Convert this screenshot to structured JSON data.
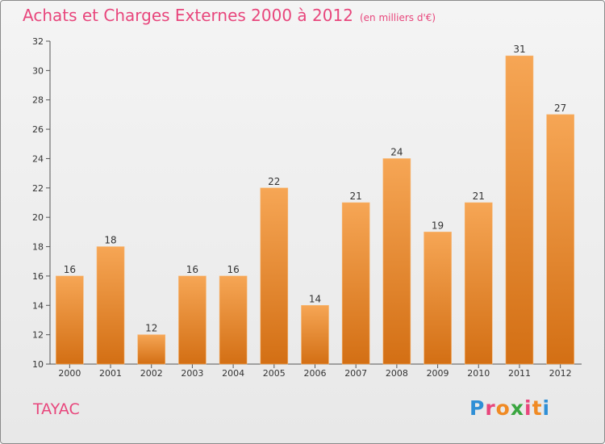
{
  "header": {
    "title": "Achats et Charges Externes 2000 à 2012",
    "subtitle": "(en milliers d'€)"
  },
  "footer": {
    "commune": "TAYAC",
    "logo_text": "Proxiti",
    "logo_colors": [
      "#2f8fd6",
      "#e8467c",
      "#f08a24",
      "#3aa640",
      "#e8467c",
      "#f08a24",
      "#2f8fd6"
    ]
  },
  "colors": {
    "bar_top": "#f6a655",
    "bar_bottom": "#d36f14",
    "accent": "#e8467c"
  },
  "chart_data": {
    "type": "bar",
    "title": "Achats et Charges Externes 2000 à 2012",
    "subtitle": "(en milliers d'€)",
    "categories": [
      "2000",
      "2001",
      "2002",
      "2003",
      "2004",
      "2005",
      "2006",
      "2007",
      "2008",
      "2009",
      "2010",
      "2011",
      "2012"
    ],
    "values": [
      16,
      18,
      12,
      16,
      16,
      22,
      14,
      21,
      24,
      19,
      21,
      31,
      27
    ],
    "xlabel": "",
    "ylabel": "",
    "ylim": [
      10,
      32
    ],
    "yticks": [
      10,
      12,
      14,
      16,
      18,
      20,
      22,
      24,
      26,
      28,
      30,
      32
    ],
    "grid": false,
    "data_labels": true
  }
}
